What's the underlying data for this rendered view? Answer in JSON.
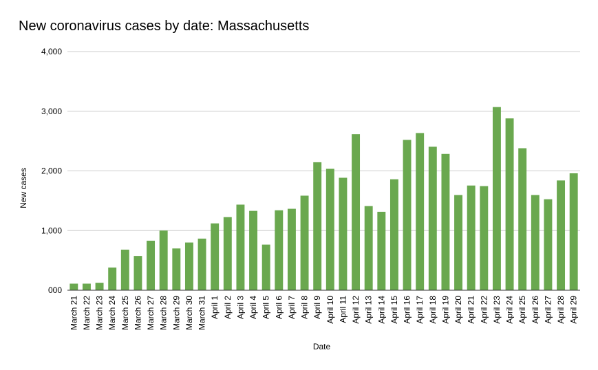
{
  "chart_data": {
    "type": "bar",
    "title": "New coronavirus cases by date: Massachusetts",
    "xlabel": "Date",
    "ylabel": "New cases",
    "ylim": [
      0,
      4000
    ],
    "yticks": [
      "000",
      "1,000",
      "2,000",
      "3,000",
      "4,000"
    ],
    "ytick_values": [
      0,
      1000,
      2000,
      3000,
      4000
    ],
    "grid": true,
    "bar_color": "#6aa84f",
    "categories": [
      "March 21",
      "March 22",
      "March 23",
      "March 24",
      "March 25",
      "March 26",
      "March 27",
      "March 28",
      "March 29",
      "March 30",
      "March 31",
      "April 1",
      "April 2",
      "April 3",
      "April 4",
      "April 5",
      "April 6",
      "April 7",
      "April 8",
      "April 9",
      "April 10",
      "April 11",
      "April 12",
      "April 13",
      "April 14",
      "April 15",
      "April 16",
      "April 17",
      "April 18",
      "April 19",
      "April 20",
      "April 21",
      "April 22",
      "April 23",
      "April 24",
      "April 25",
      "April 26",
      "April 27",
      "April 28",
      "April 29"
    ],
    "values": [
      110,
      110,
      125,
      380,
      680,
      575,
      830,
      1000,
      700,
      800,
      865,
      1120,
      1225,
      1435,
      1330,
      765,
      1340,
      1365,
      1585,
      2145,
      2035,
      1885,
      2615,
      1410,
      1315,
      1860,
      2520,
      2635,
      2405,
      2285,
      1595,
      1755,
      1745,
      3070,
      2880,
      2380,
      1595,
      1525,
      1840,
      1960
    ]
  }
}
